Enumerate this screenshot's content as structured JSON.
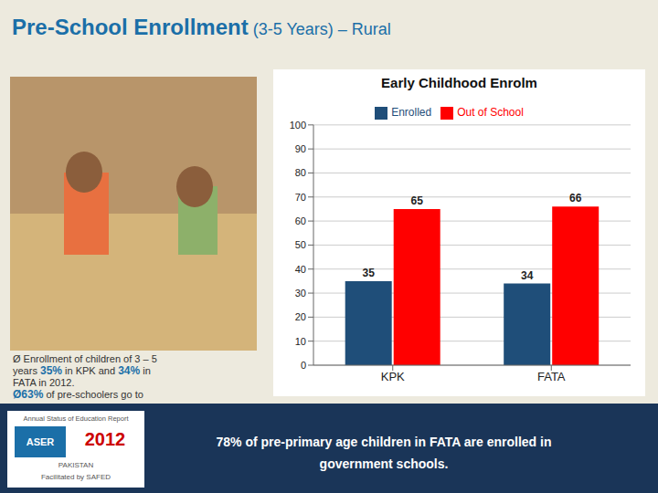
{
  "chart_data": {
    "type": "bar",
    "title": "Early Childhood Enrolm",
    "annotations": [
      "Pre-School Enrollment",
      " (3-5 Years) – Rural",
      "Annual Status of Education Report",
      "ASER",
      "2012",
      "PAKISTAN",
      "Facilitated by SAFED",
      "78% of pre-primary age children in FATA are enrolled in",
      "government schools.",
      "Ø Enrollment of children of 3 – 5",
      "years ",
      "35%",
      " in KPK and ",
      "34%",
      " in",
      "FATA in 2012.",
      "Ø63%",
      " of pre-schoolers go to"
    ],
    "categories": [
      "KPK",
      "FATA"
    ],
    "series": [
      {
        "name": "Enrolled",
        "color": "#1F4E79",
        "values": [
          35,
          34
        ]
      },
      {
        "name": "Out of School",
        "color": "#FF0000",
        "values": [
          65,
          66
        ]
      }
    ],
    "ylim": [
      0,
      100
    ],
    "yticks": [
      0,
      10,
      20,
      30,
      40,
      50,
      60,
      70,
      80,
      90,
      100
    ],
    "grid": true,
    "legend": "top",
    "data_labels": true
  }
}
